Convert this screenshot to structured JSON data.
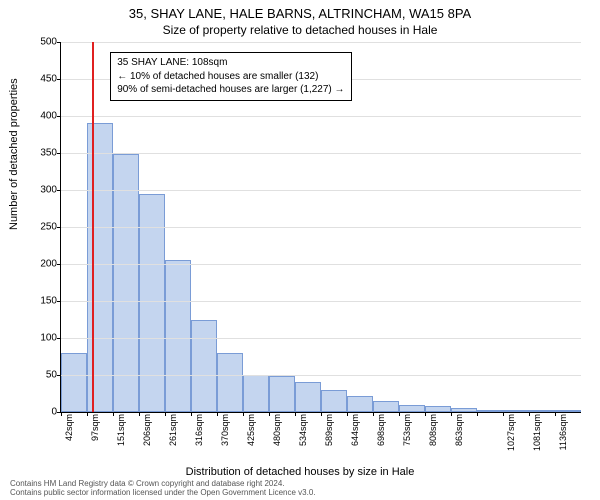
{
  "title_line1": "35, SHAY LANE, HALE BARNS, ALTRINCHAM, WA15 8PA",
  "title_line2": "Size of property relative to detached houses in Hale",
  "ylabel": "Number of detached properties",
  "xlabel": "Distribution of detached houses by size in Hale",
  "footer_line1": "Contains HM Land Registry data © Crown copyright and database right 2024.",
  "footer_line2": "Contains public sector information licensed under the Open Government Licence v3.0.",
  "chart": {
    "type": "bar",
    "ylim_max": 500,
    "ytick_step": 50,
    "bar_fill": "#c4d5ef",
    "bar_stroke": "#7a9cd6",
    "grid_color": "#e0e0e0",
    "background_color": "#ffffff",
    "marker_color": "#e02020",
    "marker_bin_index": 1,
    "categories": [
      "42sqm",
      "97sqm",
      "151sqm",
      "206sqm",
      "261sqm",
      "316sqm",
      "370sqm",
      "425sqm",
      "480sqm",
      "534sqm",
      "589sqm",
      "644sqm",
      "698sqm",
      "753sqm",
      "808sqm",
      "863sqm",
      "",
      "1027sqm",
      "1081sqm",
      "1136sqm"
    ],
    "values": [
      80,
      390,
      348,
      295,
      205,
      125,
      80,
      50,
      48,
      40,
      30,
      22,
      15,
      10,
      8,
      6,
      3,
      3,
      2,
      2
    ]
  },
  "info_box": {
    "line1": "35 SHAY LANE: 108sqm",
    "line2": "← 10% of detached houses are smaller (132)",
    "line3": "90% of semi-detached houses are larger (1,227) →"
  }
}
